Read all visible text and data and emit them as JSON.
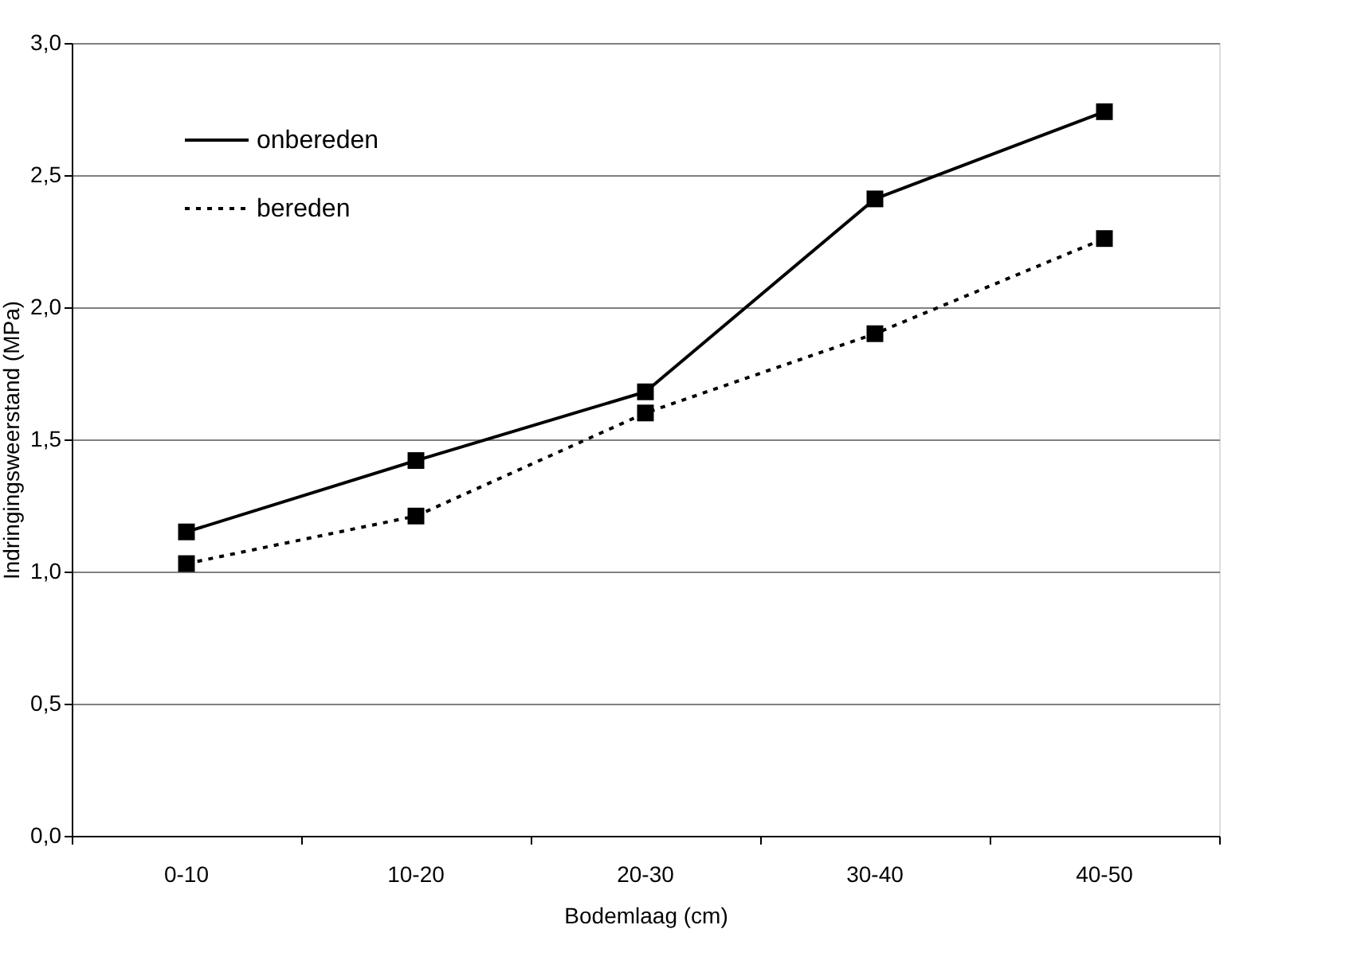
{
  "chart_data": {
    "type": "line",
    "xlabel": "Bodemlaag (cm)",
    "ylabel": "Indringingsweerstand (MPa)",
    "categories": [
      "0-10",
      "10-20",
      "20-30",
      "30-40",
      "40-50"
    ],
    "series": [
      {
        "name": "onbereden",
        "color": "#000000",
        "line_style": "solid",
        "values": [
          1.15,
          1.42,
          1.68,
          2.41,
          2.74
        ]
      },
      {
        "name": "bereden",
        "color": "#000000",
        "line_style": "dotted",
        "values": [
          1.03,
          1.21,
          1.6,
          1.9,
          2.26
        ]
      }
    ],
    "ylim": [
      0,
      3
    ],
    "yticks": [
      {
        "value": 0,
        "label": "0,0"
      },
      {
        "value": 0.5,
        "label": "0,5"
      },
      {
        "value": 1,
        "label": "1,0"
      },
      {
        "value": 1.5,
        "label": "1,5"
      },
      {
        "value": 2,
        "label": "2,0"
      },
      {
        "value": 2.5,
        "label": "2,5"
      },
      {
        "value": 3,
        "label": "3,0"
      }
    ],
    "grid": "y",
    "legend": "top left",
    "marker": "square"
  }
}
